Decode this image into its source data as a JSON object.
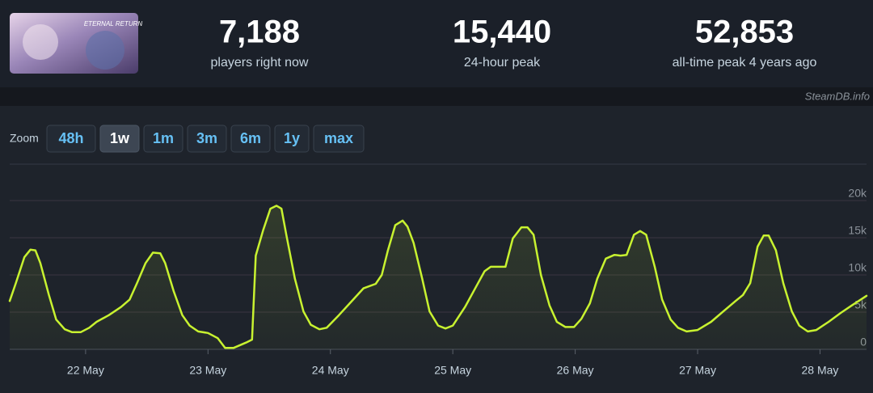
{
  "header": {
    "logo_text": "ETERNAL RETURN",
    "stats": [
      {
        "value": "7,188",
        "label": "players right now"
      },
      {
        "value": "15,440",
        "label": "24-hour peak"
      },
      {
        "value": "52,853",
        "label": "all-time peak 4 years ago"
      }
    ],
    "watermark": "SteamDB.info"
  },
  "zoom": {
    "label": "Zoom",
    "options": [
      "48h",
      "1w",
      "1m",
      "3m",
      "6m",
      "1y",
      "max"
    ],
    "active": "1w"
  },
  "chart_data": {
    "type": "line",
    "color": "#c8f230",
    "x": [
      21.38,
      21.43,
      21.5,
      21.55,
      21.59,
      21.63,
      21.7,
      21.76,
      21.83,
      21.89,
      21.96,
      22.03,
      22.09,
      22.19,
      22.29,
      22.36,
      22.42,
      22.49,
      22.55,
      22.61,
      22.65,
      22.72,
      22.79,
      22.85,
      22.92,
      23.0,
      23.08,
      23.14,
      23.21,
      23.31,
      23.36,
      23.39,
      23.45,
      23.51,
      23.56,
      23.6,
      23.64,
      23.71,
      23.78,
      23.84,
      23.91,
      23.97,
      24.07,
      24.17,
      24.27,
      24.37,
      24.42,
      24.47,
      24.53,
      24.59,
      24.63,
      24.68,
      24.75,
      24.81,
      24.88,
      24.94,
      25.0,
      25.1,
      25.19,
      25.26,
      25.31,
      25.43,
      25.49,
      25.56,
      25.61,
      25.66,
      25.72,
      25.79,
      25.85,
      25.92,
      25.99,
      26.05,
      26.12,
      26.18,
      26.25,
      26.32,
      26.37,
      26.42,
      26.48,
      26.53,
      26.58,
      26.65,
      26.71,
      26.78,
      26.84,
      26.91,
      27.0,
      27.11,
      27.21,
      27.31,
      27.37,
      27.43,
      27.49,
      27.54,
      27.58,
      27.64,
      27.7,
      27.77,
      27.83,
      27.9,
      27.97,
      28.07,
      28.17,
      28.26,
      28.38
    ],
    "values": [
      6500,
      8900,
      12400,
      13400,
      13300,
      11600,
      7300,
      4000,
      2700,
      2300,
      2300,
      2900,
      3700,
      4600,
      5700,
      6700,
      8900,
      11600,
      13000,
      12900,
      11600,
      7800,
      4600,
      3200,
      2400,
      2200,
      1500,
      200,
      200,
      900,
      1300,
      12600,
      16000,
      18900,
      19300,
      18900,
      15400,
      9500,
      5100,
      3300,
      2700,
      2900,
      4600,
      6400,
      8200,
      8800,
      10000,
      13300,
      16700,
      17300,
      16500,
      14300,
      9500,
      5100,
      3200,
      2800,
      3200,
      5700,
      8400,
      10500,
      11100,
      11100,
      14900,
      16400,
      16400,
      15400,
      10000,
      5900,
      3700,
      3000,
      3000,
      4100,
      6200,
      9500,
      12200,
      12700,
      12600,
      12700,
      15400,
      15900,
      15400,
      11100,
      6700,
      4000,
      2900,
      2400,
      2600,
      3700,
      5100,
      6500,
      7300,
      8900,
      13800,
      15300,
      15300,
      13300,
      8900,
      5100,
      3200,
      2400,
      2600,
      3700,
      4900,
      5900,
      7200
    ],
    "xlim": [
      21.38,
      28.38
    ],
    "xticks": [
      {
        "value": 22,
        "label": "22 May"
      },
      {
        "value": 23,
        "label": "23 May"
      },
      {
        "value": 24,
        "label": "24 May"
      },
      {
        "value": 25,
        "label": "25 May"
      },
      {
        "value": 26,
        "label": "26 May"
      },
      {
        "value": 27,
        "label": "27 May"
      },
      {
        "value": 28,
        "label": "28 May"
      }
    ],
    "ylim": [
      0,
      25000
    ],
    "yticks": [
      0,
      {
        "value": 5000,
        "label": "5k"
      },
      {
        "value": 10000,
        "label": "10k"
      },
      {
        "value": 15000,
        "label": "15k"
      },
      {
        "value": 20000,
        "label": "20k"
      }
    ],
    "grid": true
  }
}
